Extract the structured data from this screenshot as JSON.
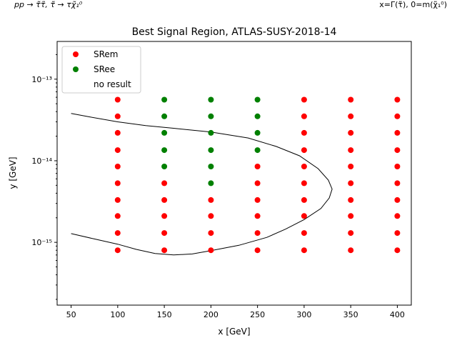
{
  "corner_left": "pp → τ̃τ̃, τ̃ → τχ̃₁⁰",
  "corner_right": "x=Γ(τ̃), 0=m(χ̃₁⁰)",
  "chart_data": {
    "type": "scatter",
    "title": "Best Signal Region, ATLAS-SUSY-2018-14",
    "xlabel": "x [GeV]",
    "ylabel": "y [GeV]",
    "xlim": [
      35,
      415
    ],
    "ylim": [
      1.7e-16,
      2.9e-13
    ],
    "yscale": "log",
    "grid": false,
    "legend_position": "top-left",
    "xticks": [
      50,
      100,
      150,
      200,
      250,
      300,
      350,
      400
    ],
    "yticks": [
      {
        "value": 1e-15,
        "label": "10⁻¹⁵"
      },
      {
        "value": 1e-14,
        "label": "10⁻¹⁴"
      },
      {
        "value": 1e-13,
        "label": "10⁻¹³"
      }
    ],
    "legend": [
      {
        "label": "SRem",
        "color": "#ff0000",
        "marker": "dot"
      },
      {
        "label": "SRee",
        "color": "#008000",
        "marker": "dot"
      },
      {
        "label": "no result",
        "color": "none",
        "marker": "none"
      }
    ],
    "y_levels": [
      8e-16,
      1.3e-15,
      2.1e-15,
      3.3e-15,
      5.3e-15,
      8.5e-15,
      1.35e-14,
      2.2e-14,
      3.5e-14,
      5.6e-14
    ],
    "series": [
      {
        "name": "SRem",
        "color": "#ff0000",
        "points": [
          [
            100,
            8e-16
          ],
          [
            100,
            1.3e-15
          ],
          [
            100,
            2.1e-15
          ],
          [
            100,
            3.3e-15
          ],
          [
            100,
            5.3e-15
          ],
          [
            100,
            8.5e-15
          ],
          [
            100,
            1.35e-14
          ],
          [
            100,
            2.2e-14
          ],
          [
            100,
            3.5e-14
          ],
          [
            100,
            5.6e-14
          ],
          [
            150,
            8e-16
          ],
          [
            150,
            1.3e-15
          ],
          [
            150,
            2.1e-15
          ],
          [
            150,
            3.3e-15
          ],
          [
            150,
            5.3e-15
          ],
          [
            200,
            8e-16
          ],
          [
            200,
            1.3e-15
          ],
          [
            200,
            2.1e-15
          ],
          [
            200,
            3.3e-15
          ],
          [
            250,
            8e-16
          ],
          [
            250,
            1.3e-15
          ],
          [
            250,
            2.1e-15
          ],
          [
            250,
            3.3e-15
          ],
          [
            250,
            5.3e-15
          ],
          [
            250,
            8.5e-15
          ],
          [
            300,
            8e-16
          ],
          [
            300,
            1.3e-15
          ],
          [
            300,
            2.1e-15
          ],
          [
            300,
            3.3e-15
          ],
          [
            300,
            5.3e-15
          ],
          [
            300,
            8.5e-15
          ],
          [
            300,
            1.35e-14
          ],
          [
            300,
            2.2e-14
          ],
          [
            300,
            3.5e-14
          ],
          [
            300,
            5.6e-14
          ],
          [
            350,
            8e-16
          ],
          [
            350,
            1.3e-15
          ],
          [
            350,
            2.1e-15
          ],
          [
            350,
            3.3e-15
          ],
          [
            350,
            5.3e-15
          ],
          [
            350,
            8.5e-15
          ],
          [
            350,
            1.35e-14
          ],
          [
            350,
            2.2e-14
          ],
          [
            350,
            3.5e-14
          ],
          [
            350,
            5.6e-14
          ],
          [
            400,
            8e-16
          ],
          [
            400,
            1.3e-15
          ],
          [
            400,
            2.1e-15
          ],
          [
            400,
            3.3e-15
          ],
          [
            400,
            5.3e-15
          ],
          [
            400,
            8.5e-15
          ],
          [
            400,
            1.35e-14
          ],
          [
            400,
            2.2e-14
          ],
          [
            400,
            3.5e-14
          ],
          [
            400,
            5.6e-14
          ]
        ]
      },
      {
        "name": "SRee",
        "color": "#008000",
        "points": [
          [
            150,
            8.5e-15
          ],
          [
            150,
            1.35e-14
          ],
          [
            150,
            2.2e-14
          ],
          [
            150,
            3.5e-14
          ],
          [
            150,
            5.6e-14
          ],
          [
            200,
            5.3e-15
          ],
          [
            200,
            8.5e-15
          ],
          [
            200,
            1.35e-14
          ],
          [
            200,
            2.2e-14
          ],
          [
            200,
            3.5e-14
          ],
          [
            200,
            5.6e-14
          ],
          [
            250,
            1.35e-14
          ],
          [
            250,
            2.2e-14
          ],
          [
            250,
            3.5e-14
          ],
          [
            250,
            5.6e-14
          ]
        ]
      }
    ],
    "contour": [
      [
        50,
        3.8e-14
      ],
      [
        70,
        3.45e-14
      ],
      [
        100,
        3e-14
      ],
      [
        130,
        2.7e-14
      ],
      [
        160,
        2.5e-14
      ],
      [
        200,
        2.25e-14
      ],
      [
        240,
        1.9e-14
      ],
      [
        270,
        1.5e-14
      ],
      [
        295,
        1.15e-14
      ],
      [
        315,
        8e-15
      ],
      [
        326,
        5.8e-15
      ],
      [
        330,
        4.5e-15
      ],
      [
        327,
        3.5e-15
      ],
      [
        318,
        2.6e-15
      ],
      [
        300,
        1.9e-15
      ],
      [
        280,
        1.45e-15
      ],
      [
        260,
        1.15e-15
      ],
      [
        230,
        9.2e-16
      ],
      [
        200,
        7.9e-16
      ],
      [
        180,
        7.2e-16
      ],
      [
        160,
        7e-16
      ],
      [
        140,
        7.3e-16
      ],
      [
        120,
        8.2e-16
      ],
      [
        100,
        9.5e-16
      ],
      [
        75,
        1.1e-15
      ],
      [
        50,
        1.28e-15
      ]
    ]
  }
}
